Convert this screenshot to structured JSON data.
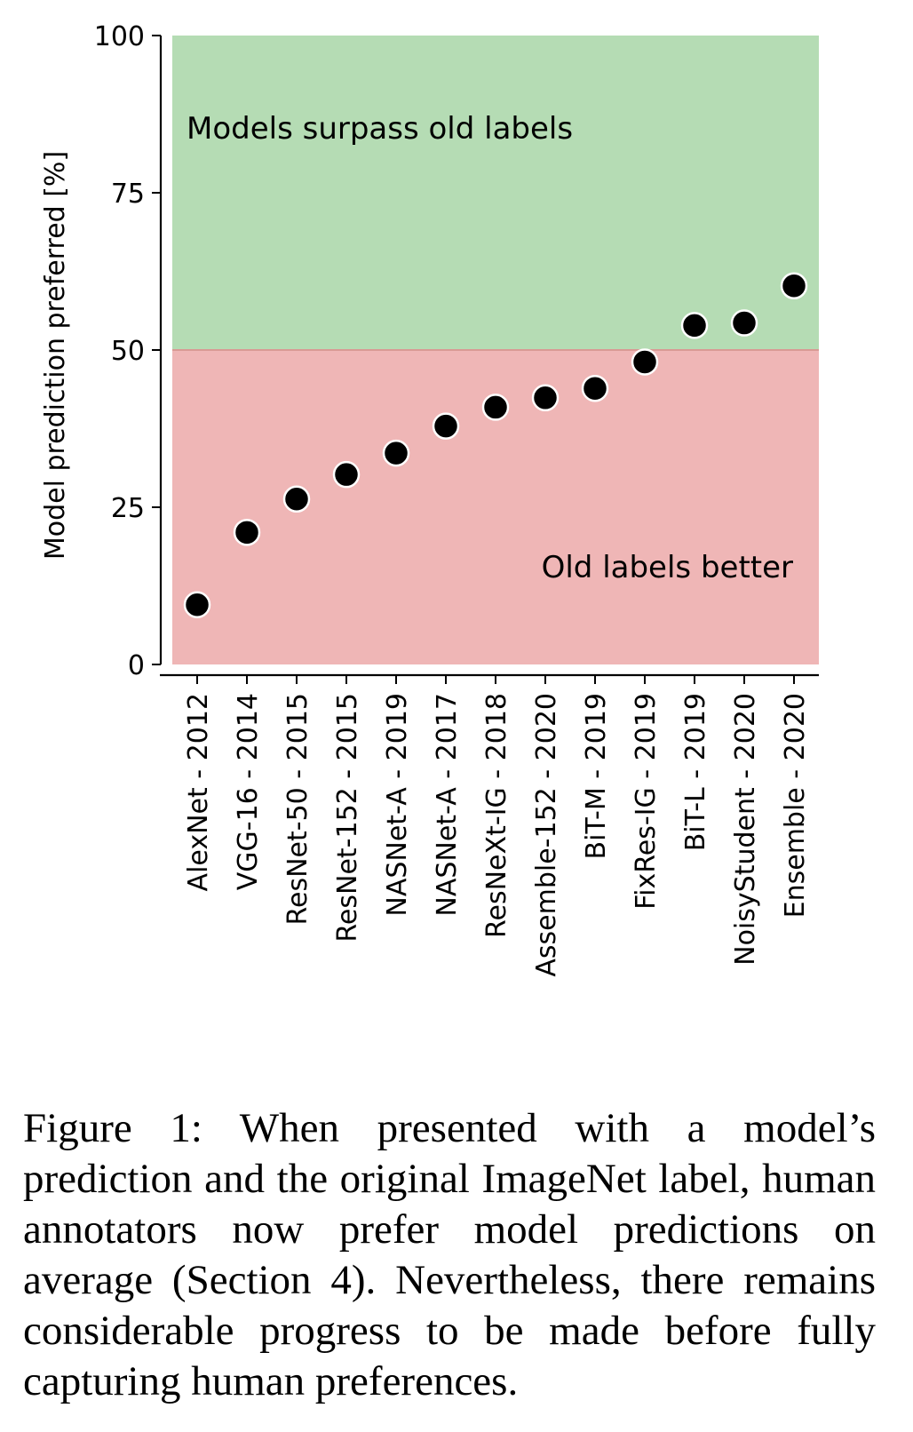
{
  "chart_data": {
    "type": "scatter",
    "categories": [
      "AlexNet - 2012",
      "VGG-16 - 2014",
      "ResNet-50 - 2015",
      "ResNet-152 - 2015",
      "NASNet-A - 2019",
      "NASNet-A - 2017",
      "ResNeXt-IG - 2018",
      "Assemble-152 - 2020",
      "BiT-M - 2019",
      "FixRes-IG - 2019",
      "BiT-L - 2019",
      "NoisyStudent - 2020",
      "Ensemble - 2020"
    ],
    "values": [
      9.5,
      21,
      26.3,
      30.2,
      33.6,
      37.9,
      40.9,
      42.4,
      43.9,
      48.1,
      53.9,
      54.3,
      60.2
    ],
    "title": "",
    "xlabel": "",
    "ylabel": "Model prediction preferred [%]",
    "ylim": [
      0,
      100
    ],
    "yticks": [
      0,
      25,
      50,
      75,
      100
    ],
    "threshold": 50,
    "grid": false,
    "regions": {
      "upper": {
        "label": "Models surpass old labels",
        "color": "#b5dcb4"
      },
      "lower": {
        "label": "Old labels better",
        "color": "#efb6b6"
      }
    },
    "marker_color": "#000000"
  },
  "caption": "Figure 1: When presented with a model’s prediction and the original ImageNet label, human annotators now prefer model predictions on average (Section 4). Nevertheless, there remains considerable progress to be made before fully capturing human preferences."
}
